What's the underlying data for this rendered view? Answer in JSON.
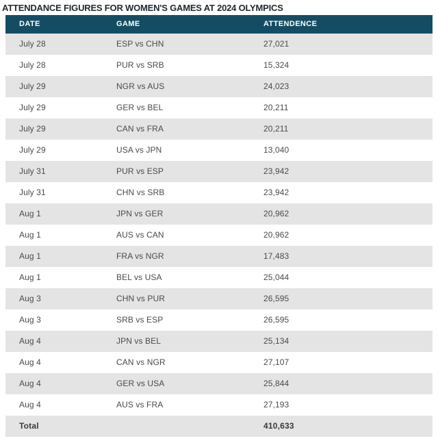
{
  "title": "ATTENDANCE FIGURES FOR WOMEN'S GAMES AT 2024 OLYMPICS",
  "chart_data": {
    "type": "table",
    "title": "ATTENDANCE FIGURES FOR WOMEN'S GAMES AT 2024 OLYMPICS",
    "columns": [
      "DATE",
      "GAME",
      "ATTENDENCE"
    ],
    "rows": [
      {
        "date": "July 28",
        "game": "ESP vs CHN",
        "attendance": "27,021"
      },
      {
        "date": "July 28",
        "game": "PUR vs SRB",
        "attendance": "15,324"
      },
      {
        "date": "July 29",
        "game": "NGR vs AUS",
        "attendance": "24,023"
      },
      {
        "date": "July 29",
        "game": "GER vs BEL",
        "attendance": "20,211"
      },
      {
        "date": "July 29",
        "game": "CAN vs FRA",
        "attendance": "20,211"
      },
      {
        "date": "July 29",
        "game": "USA vs JPN",
        "attendance": "13,040"
      },
      {
        "date": "July 31",
        "game": "PUR vs ESP",
        "attendance": "23,942"
      },
      {
        "date": "July 31",
        "game": "CHN vs SRB",
        "attendance": "23,942"
      },
      {
        "date": "Aug 1",
        "game": "JPN vs GER",
        "attendance": "20,962"
      },
      {
        "date": "Aug 1",
        "game": "AUS vs CAN",
        "attendance": "20,962"
      },
      {
        "date": "Aug 1",
        "game": "FRA vs NGR",
        "attendance": "17,483"
      },
      {
        "date": "Aug 1",
        "game": "BEL vs USA",
        "attendance": "25,044"
      },
      {
        "date": "Aug 3",
        "game": "CHN vs PUR",
        "attendance": "26,595"
      },
      {
        "date": "Aug 3",
        "game": "SRB vs ESP",
        "attendance": "26,595"
      },
      {
        "date": "Aug 4",
        "game": "JPN vs BEL",
        "attendance": "25,134"
      },
      {
        "date": "Aug 4",
        "game": "CAN vs NGR",
        "attendance": "27,107"
      },
      {
        "date": "Aug 4",
        "game": "GER vs USA",
        "attendance": "25,844"
      },
      {
        "date": "Aug 4",
        "game": "AUS vs FRA",
        "attendance": "27,193"
      }
    ],
    "total_label": "Total",
    "total_value": "410,633"
  },
  "colors": {
    "header_bg": "#144d63",
    "header_text": "#ffffff",
    "row_alt_bg": "#e4e4e4",
    "row_bg": "#ffffff",
    "row_text": "#4a4a4a",
    "title_text": "#23282d"
  }
}
